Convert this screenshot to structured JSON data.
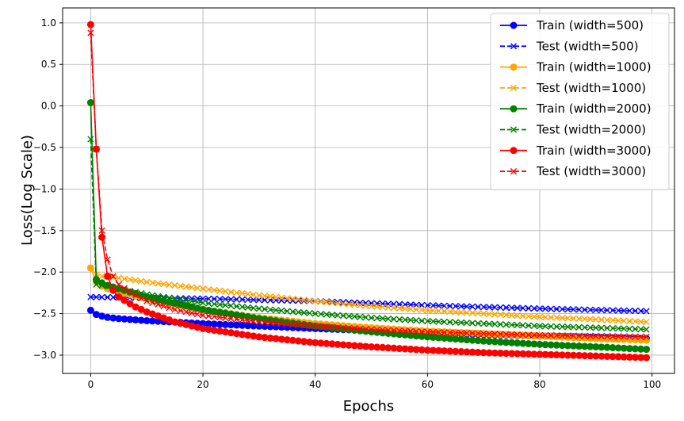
{
  "chart_data": {
    "type": "line",
    "title": "",
    "xlabel": "Epochs",
    "ylabel": "Loss(Log Scale)",
    "xlim": [
      -5,
      104
    ],
    "ylim": [
      -3.22,
      1.18
    ],
    "xticks": [
      0,
      20,
      40,
      60,
      80,
      100
    ],
    "yticks": [
      -3.0,
      -2.5,
      -2.0,
      -1.5,
      -1.0,
      -0.5,
      0.0,
      0.5,
      1.0
    ],
    "ytick_labels": [
      "−3.0",
      "−2.5",
      "−2.0",
      "−1.5",
      "−1.0",
      "−0.5",
      "0.0",
      "0.5",
      "1.0"
    ],
    "grid": true,
    "legend_position": "upper-right",
    "epochs": 100,
    "series": [
      {
        "name": "Train (width=500)",
        "color": "#0000ff",
        "marker": "circle",
        "linestyle": "solid",
        "anchors": [
          [
            0,
            -2.46
          ],
          [
            1,
            -2.51
          ],
          [
            2,
            -2.53
          ],
          [
            3,
            -2.545
          ],
          [
            5,
            -2.56
          ],
          [
            10,
            -2.585
          ],
          [
            20,
            -2.62
          ],
          [
            30,
            -2.65
          ],
          [
            40,
            -2.68
          ],
          [
            50,
            -2.705
          ],
          [
            60,
            -2.73
          ],
          [
            70,
            -2.75
          ],
          [
            80,
            -2.77
          ],
          [
            90,
            -2.785
          ],
          [
            99,
            -2.8
          ]
        ]
      },
      {
        "name": "Test (width=500)",
        "color": "#0000ff",
        "marker": "x",
        "linestyle": "dashed",
        "anchors": [
          [
            0,
            -2.3
          ],
          [
            5,
            -2.305
          ],
          [
            20,
            -2.32
          ],
          [
            40,
            -2.35
          ],
          [
            60,
            -2.4
          ],
          [
            80,
            -2.44
          ],
          [
            99,
            -2.47
          ]
        ]
      },
      {
        "name": "Train (width=1000)",
        "color": "#ffa500",
        "marker": "circle",
        "linestyle": "solid",
        "anchors": [
          [
            0,
            -1.95
          ],
          [
            1,
            -2.12
          ],
          [
            2,
            -2.17
          ],
          [
            3,
            -2.2
          ],
          [
            5,
            -2.24
          ],
          [
            10,
            -2.32
          ],
          [
            20,
            -2.45
          ],
          [
            30,
            -2.55
          ],
          [
            40,
            -2.62
          ],
          [
            50,
            -2.67
          ],
          [
            60,
            -2.71
          ],
          [
            70,
            -2.74
          ],
          [
            80,
            -2.77
          ],
          [
            90,
            -2.8
          ],
          [
            99,
            -2.82
          ]
        ]
      },
      {
        "name": "Test (width=1000)",
        "color": "#ffa500",
        "marker": "x",
        "linestyle": "dashed",
        "anchors": [
          [
            0,
            -1.95
          ],
          [
            1,
            -2.03
          ],
          [
            2,
            -2.05
          ],
          [
            5,
            -2.07
          ],
          [
            10,
            -2.12
          ],
          [
            20,
            -2.2
          ],
          [
            30,
            -2.28
          ],
          [
            40,
            -2.35
          ],
          [
            50,
            -2.41
          ],
          [
            60,
            -2.46
          ],
          [
            70,
            -2.5
          ],
          [
            80,
            -2.54
          ],
          [
            90,
            -2.57
          ],
          [
            99,
            -2.6
          ]
        ]
      },
      {
        "name": "Train (width=2000)",
        "color": "#008000",
        "marker": "circle",
        "linestyle": "solid",
        "anchors": [
          [
            0,
            0.04
          ],
          [
            1,
            -2.09
          ],
          [
            2,
            -2.13
          ],
          [
            3,
            -2.16
          ],
          [
            5,
            -2.2
          ],
          [
            10,
            -2.3
          ],
          [
            20,
            -2.45
          ],
          [
            30,
            -2.56
          ],
          [
            40,
            -2.65
          ],
          [
            50,
            -2.72
          ],
          [
            60,
            -2.78
          ],
          [
            70,
            -2.83
          ],
          [
            80,
            -2.87
          ],
          [
            90,
            -2.9
          ],
          [
            99,
            -2.93
          ]
        ]
      },
      {
        "name": "Test (width=2000)",
        "color": "#008000",
        "marker": "x",
        "linestyle": "dashed",
        "anchors": [
          [
            0,
            -0.4
          ],
          [
            1,
            -2.15
          ],
          [
            2,
            -2.16
          ],
          [
            3,
            -2.17
          ],
          [
            5,
            -2.2
          ],
          [
            10,
            -2.27
          ],
          [
            20,
            -2.37
          ],
          [
            30,
            -2.44
          ],
          [
            40,
            -2.5
          ],
          [
            50,
            -2.55
          ],
          [
            60,
            -2.59
          ],
          [
            70,
            -2.62
          ],
          [
            80,
            -2.65
          ],
          [
            90,
            -2.67
          ],
          [
            99,
            -2.69
          ]
        ]
      },
      {
        "name": "Train (width=3000)",
        "color": "#ff0000",
        "marker": "circle",
        "linestyle": "solid",
        "anchors": [
          [
            0,
            0.98
          ],
          [
            1,
            -0.52
          ],
          [
            2,
            -1.58
          ],
          [
            3,
            -2.05
          ],
          [
            4,
            -2.22
          ],
          [
            5,
            -2.3
          ],
          [
            8,
            -2.42
          ],
          [
            10,
            -2.48
          ],
          [
            15,
            -2.6
          ],
          [
            20,
            -2.68
          ],
          [
            30,
            -2.78
          ],
          [
            40,
            -2.85
          ],
          [
            50,
            -2.9
          ],
          [
            60,
            -2.94
          ],
          [
            70,
            -2.97
          ],
          [
            80,
            -2.99
          ],
          [
            90,
            -3.01
          ],
          [
            99,
            -3.03
          ]
        ]
      },
      {
        "name": "Test (width=3000)",
        "color": "#ff0000",
        "marker": "x",
        "linestyle": "dashed",
        "anchors": [
          [
            0,
            0.88
          ],
          [
            1,
            -0.52
          ],
          [
            2,
            -1.5
          ],
          [
            3,
            -1.85
          ],
          [
            4,
            -2.05
          ],
          [
            5,
            -2.15
          ],
          [
            8,
            -2.28
          ],
          [
            10,
            -2.35
          ],
          [
            15,
            -2.45
          ],
          [
            20,
            -2.52
          ],
          [
            30,
            -2.6
          ],
          [
            40,
            -2.65
          ],
          [
            50,
            -2.69
          ],
          [
            60,
            -2.72
          ],
          [
            70,
            -2.74
          ],
          [
            80,
            -2.76
          ],
          [
            90,
            -2.77
          ],
          [
            99,
            -2.78
          ]
        ]
      }
    ]
  }
}
